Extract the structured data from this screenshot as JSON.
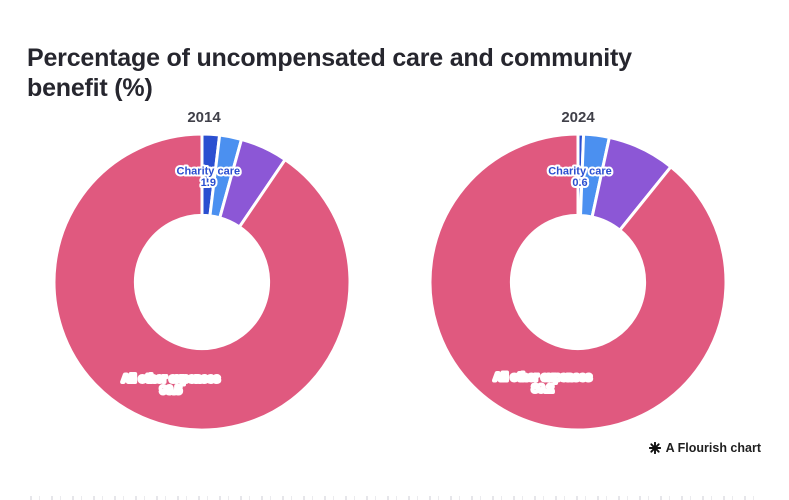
{
  "header": {
    "title_line1": "Percentage of uncompensated care and community",
    "title_line2": "benefit (%)",
    "title_color": "#26262e"
  },
  "attribution": {
    "icon": "flourish-asterisk-icon",
    "text": "A Flourish chart"
  },
  "palette": {
    "charity_care_blue": "#2b4fd0",
    "segment_light_blue": "#4b90f0",
    "segment_purple": "#8c57d6",
    "all_other_expenses_pink": "#e0597f",
    "label_halo": "#ffffff"
  },
  "chart_data": [
    {
      "type": "pie",
      "subtype": "donut",
      "title": "2014",
      "inner_radius_ratio": 0.45,
      "slices": [
        {
          "label": "Charity care",
          "value": 1.9,
          "color": "#2b4fd0",
          "show_label": true,
          "label_color": "#2b4fd0"
        },
        {
          "label": "",
          "value": 2.4,
          "color": "#4b90f0",
          "show_label": false,
          "label_color": ""
        },
        {
          "label": "",
          "value": 5.2,
          "color": "#8c57d6",
          "show_label": false,
          "label_color": ""
        },
        {
          "label": "All other expenses",
          "value": 90.5,
          "color": "#e0597f",
          "show_label": true,
          "label_color": "#ffffff"
        }
      ]
    },
    {
      "type": "pie",
      "subtype": "donut",
      "title": "2024",
      "inner_radius_ratio": 0.45,
      "slices": [
        {
          "label": "Charity care",
          "value": 0.6,
          "color": "#2b4fd0",
          "show_label": true,
          "label_color": "#2b4fd0"
        },
        {
          "label": "",
          "value": 2.8,
          "color": "#4b90f0",
          "show_label": false,
          "label_color": ""
        },
        {
          "label": "",
          "value": 7.4,
          "color": "#8c57d6",
          "show_label": false,
          "label_color": ""
        },
        {
          "label": "All other expenses",
          "value": 89.2,
          "color": "#e0597f",
          "show_label": true,
          "label_color": "#ffffff"
        }
      ]
    }
  ]
}
